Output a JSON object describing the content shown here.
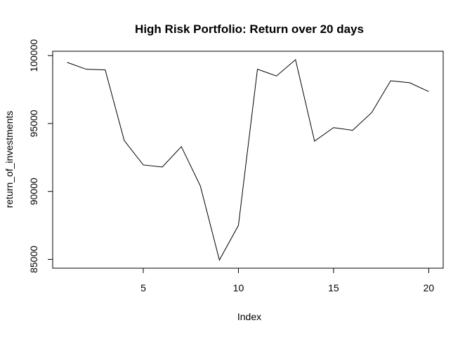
{
  "chart_data": {
    "type": "line",
    "title": "High Risk Portfolio: Return over 20 days",
    "xlabel": "Index",
    "ylabel": "return_of_investments",
    "x": [
      1,
      2,
      3,
      4,
      5,
      6,
      7,
      8,
      9,
      10,
      11,
      12,
      13,
      14,
      15,
      16,
      17,
      18,
      19,
      20
    ],
    "series": [
      {
        "values": [
          99500,
          99000,
          98950,
          93750,
          91950,
          91800,
          93300,
          90400,
          84950,
          87500,
          99000,
          98500,
          99700,
          93700,
          94700,
          94500,
          95800,
          98150,
          98000,
          97350
        ]
      }
    ],
    "xlim": [
      0.24,
      20.76
    ],
    "ylim": [
      84350,
      100320
    ],
    "x_ticks": [
      5,
      10,
      15,
      20
    ],
    "y_ticks": [
      85000,
      90000,
      95000,
      100000
    ],
    "x_tick_labels": [
      "5",
      "10",
      "15",
      "20"
    ],
    "y_tick_labels": [
      "85000",
      "90000",
      "95000",
      "100000"
    ],
    "grid": false,
    "legend": "none",
    "colors": {
      "line": "#000000",
      "axis": "#000000",
      "background": "#ffffff"
    }
  }
}
